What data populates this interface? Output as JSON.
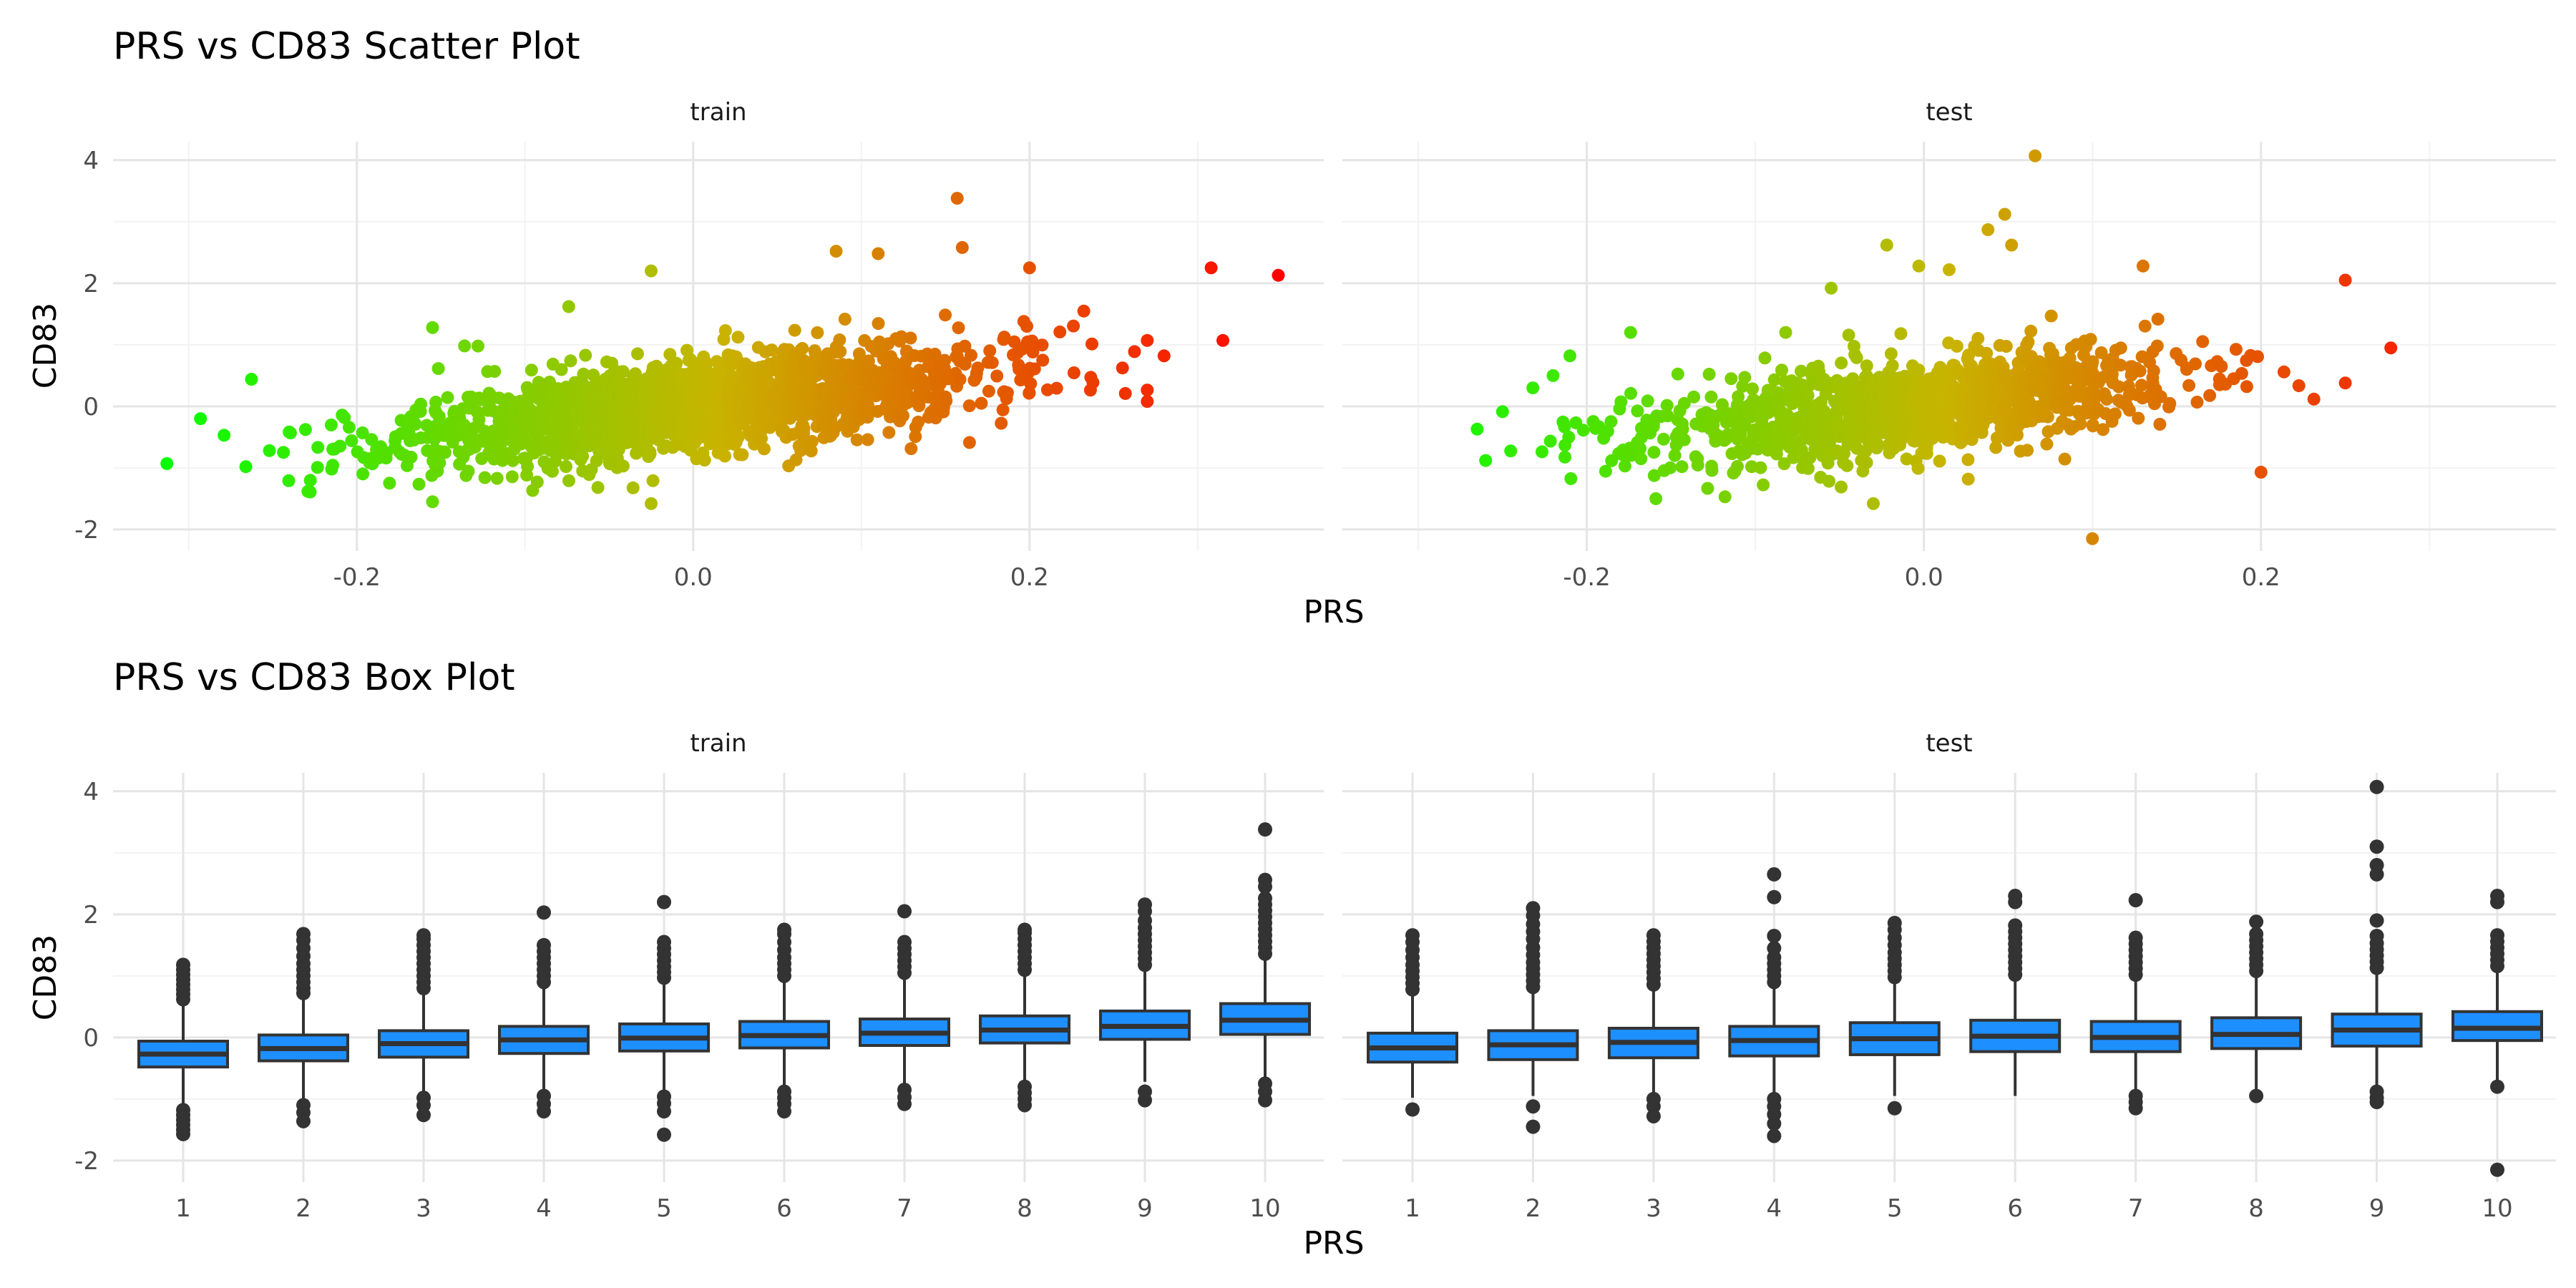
{
  "chart_data": [
    {
      "type": "scatter",
      "title": "PRS vs CD83 Scatter Plot",
      "xlabel": "PRS",
      "ylabel": "CD83",
      "facets": [
        "train",
        "test"
      ],
      "xlim": [
        -0.345,
        0.375
      ],
      "ylim": [
        -2.35,
        4.3
      ],
      "x_ticks": [
        "-0.2",
        "0.0",
        "0.2"
      ],
      "y_ticks": [
        "-2",
        "0",
        "2",
        "4"
      ],
      "grid": true,
      "legend": "none",
      "color_scale": {
        "low": "#00ff00",
        "mid": "#c8b400",
        "high": "#ff0000",
        "mapped_to": "PRS"
      },
      "point_color": "PRS gradient",
      "series": [
        {
          "name": "train",
          "cloud": {
            "n": 1800,
            "x_mean": 0.0,
            "x_sd": 0.085,
            "x_min": -0.27,
            "x_max": 0.27,
            "slope": 3.2,
            "y_sd": 0.42,
            "seed": 11
          },
          "outliers": [
            [
              -0.313,
              -0.93
            ],
            [
              -0.293,
              -0.2
            ],
            [
              -0.279,
              -0.47
            ],
            [
              -0.266,
              -0.98
            ],
            [
              -0.252,
              -0.72
            ],
            [
              -0.215,
              -1.02
            ],
            [
              -0.155,
              -1.55
            ],
            [
              -0.155,
              1.28
            ],
            [
              -0.128,
              0.98
            ],
            [
              -0.074,
              1.62
            ],
            [
              -0.025,
              -1.58
            ],
            [
              -0.025,
              2.2
            ],
            [
              0.085,
              2.52
            ],
            [
              0.11,
              2.48
            ],
            [
              0.157,
              3.38
            ],
            [
              0.16,
              2.58
            ],
            [
              0.2,
              2.25
            ],
            [
              0.27,
              1.07
            ],
            [
              0.28,
              0.82
            ],
            [
              0.27,
              0.08
            ],
            [
              0.308,
              2.25
            ],
            [
              0.315,
              1.07
            ],
            [
              0.348,
              2.13
            ]
          ]
        },
        {
          "name": "test",
          "cloud": {
            "n": 1100,
            "x_mean": -0.01,
            "x_sd": 0.08,
            "x_min": -0.25,
            "x_max": 0.24,
            "slope": 2.8,
            "y_sd": 0.44,
            "seed": 23
          },
          "outliers": [
            [
              -0.265,
              -0.37
            ],
            [
              -0.26,
              -0.88
            ],
            [
              -0.232,
              0.3
            ],
            [
              -0.22,
              0.5
            ],
            [
              -0.21,
              0.82
            ],
            [
              -0.174,
              1.2
            ],
            [
              -0.118,
              -1.47
            ],
            [
              -0.082,
              1.2
            ],
            [
              -0.055,
              1.92
            ],
            [
              -0.022,
              2.62
            ],
            [
              -0.03,
              -1.58
            ],
            [
              -0.003,
              2.28
            ],
            [
              0.015,
              2.22
            ],
            [
              0.038,
              2.87
            ],
            [
              0.048,
              3.12
            ],
            [
              0.052,
              2.62
            ],
            [
              0.066,
              4.07
            ],
            [
              0.1,
              -2.15
            ],
            [
              0.13,
              2.28
            ],
            [
              0.2,
              -1.07
            ],
            [
              0.25,
              2.05
            ],
            [
              0.25,
              0.38
            ],
            [
              0.277,
              0.95
            ]
          ]
        }
      ]
    },
    {
      "type": "box",
      "title": "PRS vs CD83 Box Plot",
      "xlabel": "PRS",
      "ylabel": "CD83",
      "facets": [
        "train",
        "test"
      ],
      "categories": [
        "1",
        "2",
        "3",
        "4",
        "5",
        "6",
        "7",
        "8",
        "9",
        "10"
      ],
      "ylim": [
        -2.35,
        4.3
      ],
      "y_ticks": [
        "-2",
        "0",
        "2",
        "4"
      ],
      "grid": true,
      "box_fill": "#1e8fff",
      "box_stroke": "#333333",
      "series": [
        {
          "name": "train",
          "boxes": [
            {
              "q1": -0.48,
              "median": -0.27,
              "q3": -0.06,
              "low": -1.1,
              "high": 0.55,
              "outliers": [
                0.62,
                0.7,
                0.78,
                0.86,
                0.94,
                1.02,
                1.1,
                1.18,
                -1.18,
                -1.26,
                -1.34,
                -1.42,
                -1.5,
                -1.57
              ]
            },
            {
              "q1": -0.38,
              "median": -0.18,
              "q3": 0.04,
              "low": -1.0,
              "high": 0.65,
              "outliers": [
                0.72,
                0.8,
                0.9,
                1.0,
                1.1,
                1.2,
                1.32,
                1.45,
                1.58,
                1.68,
                -1.1,
                -1.22,
                -1.36
              ]
            },
            {
              "q1": -0.32,
              "median": -0.1,
              "q3": 0.11,
              "low": -0.9,
              "high": 0.74,
              "outliers": [
                0.8,
                0.9,
                1.0,
                1.1,
                1.2,
                1.3,
                1.4,
                1.5,
                1.6,
                1.66,
                -0.98,
                -1.1,
                -1.26
              ]
            },
            {
              "q1": -0.26,
              "median": -0.04,
              "q3": 0.18,
              "low": -0.86,
              "high": 0.84,
              "outliers": [
                0.9,
                1.0,
                1.1,
                1.2,
                1.3,
                1.4,
                1.5,
                2.03,
                -0.95,
                -1.08,
                -1.2
              ]
            },
            {
              "q1": -0.22,
              "median": -0.01,
              "q3": 0.22,
              "low": -0.88,
              "high": 0.9,
              "outliers": [
                0.97,
                1.06,
                1.15,
                1.25,
                1.35,
                1.45,
                1.55,
                2.2,
                -0.96,
                -1.07,
                -1.2,
                -1.58
              ]
            },
            {
              "q1": -0.17,
              "median": 0.03,
              "q3": 0.26,
              "low": -0.82,
              "high": 0.92,
              "outliers": [
                1.0,
                1.1,
                1.2,
                1.3,
                1.42,
                1.55,
                1.68,
                1.75,
                -0.88,
                -0.98,
                -1.08,
                -1.2
              ]
            },
            {
              "q1": -0.13,
              "median": 0.07,
              "q3": 0.3,
              "low": -0.78,
              "high": 0.98,
              "outliers": [
                1.05,
                1.15,
                1.25,
                1.35,
                1.45,
                1.55,
                2.05,
                -0.85,
                -0.97,
                -1.08
              ]
            },
            {
              "q1": -0.09,
              "median": 0.12,
              "q3": 0.35,
              "low": -0.74,
              "high": 1.02,
              "outliers": [
                1.1,
                1.2,
                1.3,
                1.4,
                1.5,
                1.6,
                1.7,
                1.75,
                -0.8,
                -0.9,
                -1.0,
                -1.1
              ]
            },
            {
              "q1": -0.03,
              "median": 0.18,
              "q3": 0.43,
              "low": -0.72,
              "high": 1.1,
              "outliers": [
                1.18,
                1.28,
                1.38,
                1.48,
                1.58,
                1.68,
                1.78,
                1.9,
                2.05,
                2.16,
                -0.88,
                -1.02
              ]
            },
            {
              "q1": 0.05,
              "median": 0.28,
              "q3": 0.55,
              "low": -0.65,
              "high": 1.28,
              "outliers": [
                1.36,
                1.46,
                1.56,
                1.66,
                1.76,
                1.86,
                1.96,
                2.06,
                2.16,
                2.26,
                2.45,
                2.56,
                3.38,
                -0.75,
                -0.88,
                -1.02
              ]
            }
          ]
        },
        {
          "name": "test",
          "boxes": [
            {
              "q1": -0.4,
              "median": -0.17,
              "q3": 0.07,
              "low": -0.98,
              "high": 0.7,
              "outliers": [
                0.78,
                0.88,
                0.98,
                1.08,
                1.18,
                1.3,
                1.42,
                1.55,
                1.66,
                -1.17
              ]
            },
            {
              "q1": -0.36,
              "median": -0.12,
              "q3": 0.11,
              "low": -0.95,
              "high": 0.74,
              "outliers": [
                0.82,
                0.92,
                1.02,
                1.12,
                1.22,
                1.34,
                1.46,
                1.6,
                1.72,
                1.84,
                1.98,
                2.1,
                -1.12,
                -1.45
              ]
            },
            {
              "q1": -0.33,
              "median": -0.08,
              "q3": 0.15,
              "low": -0.92,
              "high": 0.78,
              "outliers": [
                0.86,
                0.96,
                1.06,
                1.16,
                1.26,
                1.36,
                1.46,
                1.56,
                1.66,
                -1.0,
                -1.12,
                -1.28
              ]
            },
            {
              "q1": -0.3,
              "median": -0.05,
              "q3": 0.18,
              "low": -0.9,
              "high": 0.82,
              "outliers": [
                0.9,
                1.0,
                1.1,
                1.2,
                1.3,
                1.45,
                1.65,
                2.28,
                2.65,
                -1.0,
                -1.12,
                -1.25,
                -1.4,
                -1.6
              ]
            },
            {
              "q1": -0.28,
              "median": -0.02,
              "q3": 0.24,
              "low": -0.95,
              "high": 0.9,
              "outliers": [
                0.98,
                1.08,
                1.18,
                1.28,
                1.38,
                1.5,
                1.62,
                1.75,
                1.86,
                -1.15
              ]
            },
            {
              "q1": -0.23,
              "median": 0.02,
              "q3": 0.28,
              "low": -0.95,
              "high": 0.95,
              "outliers": [
                1.02,
                1.12,
                1.22,
                1.32,
                1.42,
                1.52,
                1.62,
                1.72,
                1.82,
                2.2,
                2.3
              ]
            },
            {
              "q1": -0.23,
              "median": 0.0,
              "q3": 0.26,
              "low": -0.95,
              "high": 0.95,
              "outliers": [
                1.02,
                1.12,
                1.22,
                1.32,
                1.42,
                1.52,
                1.62,
                2.23,
                -0.95,
                -1.05,
                -1.15
              ]
            },
            {
              "q1": -0.18,
              "median": 0.05,
              "q3": 0.32,
              "low": -0.9,
              "high": 1.0,
              "outliers": [
                1.08,
                1.18,
                1.28,
                1.38,
                1.48,
                1.58,
                1.68,
                1.88,
                -0.95
              ]
            },
            {
              "q1": -0.14,
              "median": 0.12,
              "q3": 0.38,
              "low": -0.82,
              "high": 1.05,
              "outliers": [
                1.13,
                1.23,
                1.33,
                1.43,
                1.53,
                1.65,
                1.9,
                2.65,
                2.8,
                3.1,
                4.07,
                -0.88,
                -0.98,
                -1.05
              ]
            },
            {
              "q1": -0.05,
              "median": 0.15,
              "q3": 0.42,
              "low": -0.7,
              "high": 1.08,
              "outliers": [
                1.16,
                1.26,
                1.36,
                1.46,
                1.56,
                1.66,
                2.2,
                2.3,
                -0.8,
                -2.15
              ]
            }
          ]
        }
      ]
    }
  ]
}
